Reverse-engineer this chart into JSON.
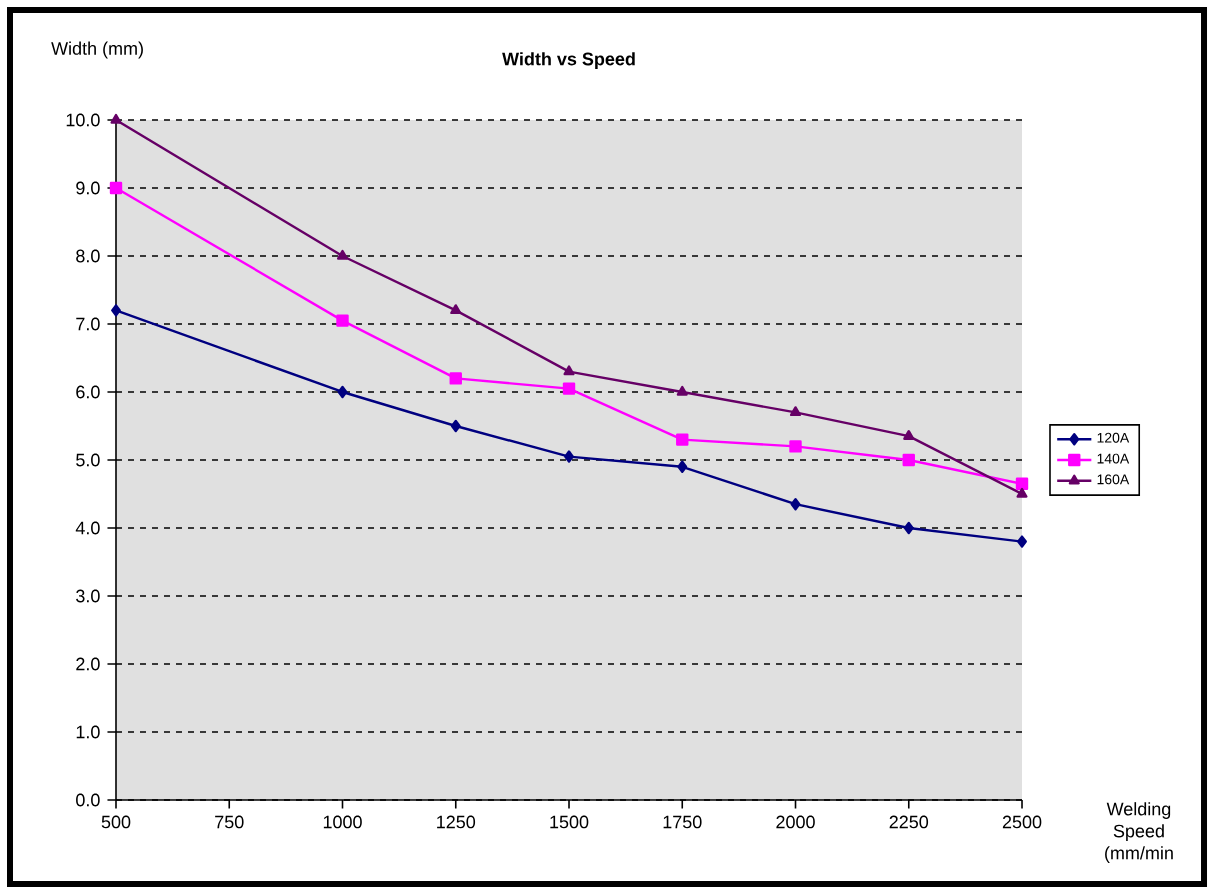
{
  "chart_data": {
    "type": "line",
    "title": "Width vs Speed",
    "ylabel": "Width (mm)",
    "xlabel": "Welding Speed (mm/min",
    "x": [
      500,
      1000,
      1250,
      1500,
      1750,
      2000,
      2250,
      2500
    ],
    "series": [
      {
        "name": "120A",
        "color": "#000080",
        "marker": "diamond",
        "values": [
          7.2,
          6.0,
          5.5,
          5.05,
          4.9,
          4.35,
          4.0,
          3.8
        ]
      },
      {
        "name": "140A",
        "color": "#ff00ff",
        "marker": "square",
        "values": [
          9.0,
          7.05,
          6.2,
          6.05,
          5.3,
          5.2,
          5.0,
          4.65
        ]
      },
      {
        "name": "160A",
        "color": "#660066",
        "marker": "triangle",
        "values": [
          10.0,
          8.0,
          7.2,
          6.3,
          6.0,
          5.7,
          5.35,
          4.5
        ]
      }
    ],
    "xlim": [
      500,
      2500
    ],
    "xticks": [
      500,
      750,
      1000,
      1250,
      1500,
      1750,
      2000,
      2250,
      2500
    ],
    "ylim": [
      0,
      10
    ],
    "yticks": [
      {
        "value": 0,
        "label": "0.0"
      },
      {
        "value": 1,
        "label": "1.0"
      },
      {
        "value": 2,
        "label": "2.0"
      },
      {
        "value": 3,
        "label": "3.0"
      },
      {
        "value": 4,
        "label": "4.0"
      },
      {
        "value": 5,
        "label": "5.0"
      },
      {
        "value": 6,
        "label": "6.0"
      },
      {
        "value": 7,
        "label": "7.0"
      },
      {
        "value": 8,
        "label": "8.0"
      },
      {
        "value": 9,
        "label": "9.0"
      },
      {
        "value": 10,
        "label": "10.0"
      }
    ],
    "grid": "y",
    "legend": "right"
  }
}
